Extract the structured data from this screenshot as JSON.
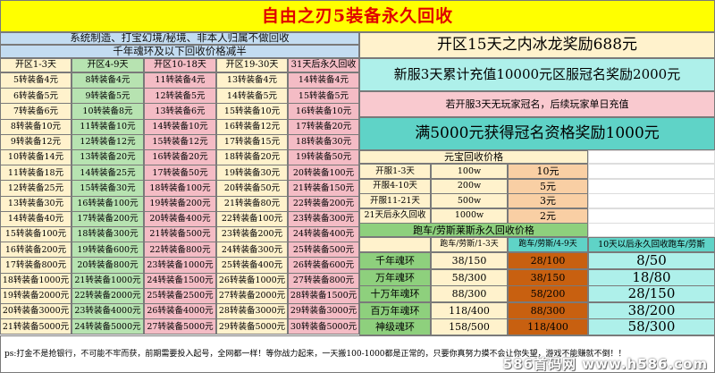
{
  "title": "自由之刃5装备永久回收",
  "notice_line1": "系统制造、打宝幻境/秘境、非本人归属不做回收",
  "notice_line2": "千年魂环及以下回收价格减半",
  "reward_15days": "开区15天之内冰龙奖励688元",
  "reward_3days": "新服3天累计充值10000元区服冠名奖励2000元",
  "reward_note": "若开服3天无玩家冠名，后续玩家单日充值",
  "reward_5000": "满5000元获得冠名资格奖励1000元",
  "recycle_columns": [
    {
      "header": "开区1-3天",
      "color": "#fff2cc",
      "items": [
        "5转装备4元",
        "6转装备5元",
        "7转装备6元",
        "8转装备10元",
        "9转装备12元",
        "10转装备14元",
        "11转装备18元",
        "12转装备25元",
        "13转装备30元",
        "14转装备40元",
        "15转装备100元",
        "16转装备200元",
        "17转装备800元",
        "18转装备1000元",
        "19转装备2000元",
        "20转装备3000元",
        "21转装备5000元"
      ]
    },
    {
      "header": "开区4-9天",
      "color": "#b7e3b1",
      "items": [
        "8转装备4元",
        "9转装备5元",
        "10转装备8元",
        "11转装备10元",
        "12转装备12元",
        "13转装备20元",
        "14转装备25元",
        "15转装备30元",
        "16转装备100元",
        "17转装备200元",
        "18转装备300元",
        "19转装备600元",
        "20转装备800元",
        "21转装备1000元",
        "22转装备2000元",
        "23转装备4000元",
        "24转装备5000元"
      ]
    },
    {
      "header": "开区10-18天",
      "color": "#f4bcc5",
      "items": [
        "11转装备4元",
        "12转装备5元",
        "13转装备6元",
        "14转装备10元",
        "15转装备12元",
        "16转装备20元",
        "17转装备50元",
        "18转装备100元",
        "19转装备200元",
        "20转装备400元",
        "21转装备500元",
        "22转装备800元",
        "23转装备1000元",
        "24转装备1500元",
        "25转装备2500元",
        "26转装备4000元",
        "27转装备5000元"
      ]
    },
    {
      "header": "开区19-30天",
      "color": "#fff2cc",
      "items": [
        "13转装备4元",
        "14转装备5元",
        "15转装备10元",
        "16转装备12元",
        "17转装备15元",
        "18转装备20元",
        "19转装备30元",
        "20转装备50元",
        "21转装备80元",
        "22转装备100元",
        "23转装备200元",
        "24转装备300元",
        "25转装备400元",
        "26转装备1000元",
        "27转装备2000元",
        "28转装备3000元",
        "29转装备5000元"
      ]
    },
    {
      "header": "31天后永久回收",
      "color": "#f4bcc5",
      "items": [
        "14转装备4元",
        "15转装备5元",
        "16转装备10元",
        "17转装备20元",
        "18转装备30元",
        "19转装备50元",
        "20转装备100元",
        "21转装备150元",
        "22转装备200元",
        "23转装备300元",
        "24转装备400元",
        "25转装备500元",
        "26转装备600元",
        "27转装备800元",
        "28转装备1500元",
        "29转装备3000元",
        "30转装备5000元"
      ]
    }
  ],
  "yuanbao": {
    "title": "元宝回收价格",
    "rows": [
      {
        "period": "开服1-3天",
        "amount": "100w",
        "price": "10元"
      },
      {
        "period": "开服4-10天",
        "amount": "200w",
        "price": "5元"
      },
      {
        "period": "开服11-21天",
        "amount": "500w",
        "price": "3元"
      },
      {
        "period": "21天后永久回收",
        "amount": "1000w",
        "price": "2元"
      }
    ]
  },
  "car": {
    "title": "跑车/劳斯莱斯永久回收价格",
    "col_a": "跑车/劳斯/1-3天",
    "col_b": "跑车/劳斯/4-9天",
    "col_c": "10天以后永久回收跑车/劳斯",
    "rows": [
      {
        "name": "千年魂环",
        "a": "38/150",
        "b": "28/100",
        "c": "8/50"
      },
      {
        "name": "万年魂环",
        "a": "58/300",
        "b": "38/150",
        "c": "18/80"
      },
      {
        "name": "十万年魂环",
        "a": "88/300",
        "b": "58/200",
        "c": "28/150"
      },
      {
        "name": "百万年魂环",
        "a": "118/400",
        "b": "88/300",
        "c": "38/200"
      },
      {
        "name": "神级魂环",
        "a": "158/500",
        "b": "118/400",
        "c": "58/300"
      }
    ]
  },
  "footer": "ps:打金不是抢银行，不可能不牢而获，前期需要投入起号，全网都一样！等你战力起来，一天搬100-1000都是正常的，只要你真努力摸不会让你失望，游戏不能赚就不倒！！",
  "watermark": "586首码网 www.h586.com",
  "colors": {
    "title_bg": "#ffff00",
    "title_text": "#e00000",
    "band": "#c3dcf1",
    "cyan": "#5fd3c7",
    "light_cyan": "#aef0ea",
    "green": "#8ed07d",
    "orange": "#c86010",
    "peach": "#f9cfa4"
  }
}
